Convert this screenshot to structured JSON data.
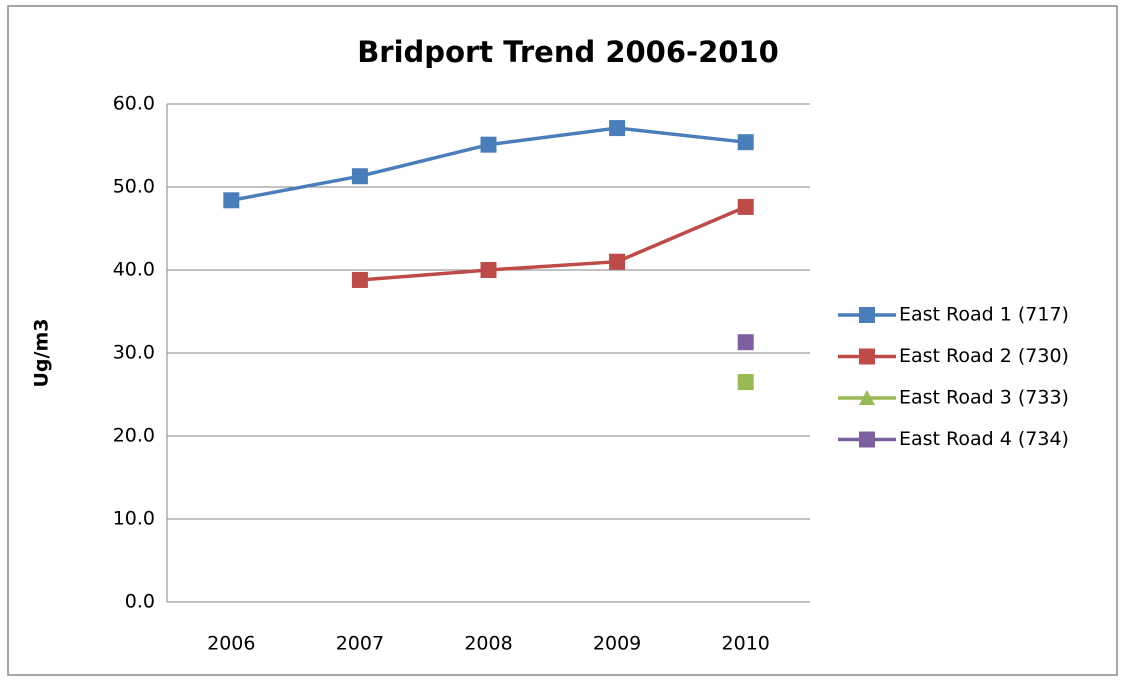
{
  "chart_data": {
    "type": "line",
    "title": "Bridport Trend 2006-2010",
    "y_label": "Ug/m3",
    "categories": [
      "2006",
      "2007",
      "2008",
      "2009",
      "2010"
    ],
    "series": [
      {
        "name": "East Road 1 (717)",
        "color": "#4a7ebb",
        "marker": "square",
        "values": [
          48.4,
          51.3,
          55.1,
          57.1,
          55.4
        ]
      },
      {
        "name": "East Road 2 (730)",
        "color": "#be4b48",
        "marker": "square",
        "values": [
          null,
          38.8,
          40.0,
          41.0,
          47.6
        ]
      },
      {
        "name": "East Road 3 (733)",
        "color": "#98b954",
        "marker": "triangle",
        "values": [
          null,
          null,
          null,
          null,
          26.5
        ]
      },
      {
        "name": "East Road 4 (734)",
        "color": "#7d60a0",
        "marker": "square",
        "values": [
          null,
          null,
          null,
          null,
          31.3
        ]
      }
    ],
    "ylim": [
      0,
      60
    ],
    "yticks": [
      {
        "value": 0,
        "label": "0.0"
      },
      {
        "value": 10,
        "label": "10.0"
      },
      {
        "value": 20,
        "label": "20.0"
      },
      {
        "value": 30,
        "label": "30.0"
      },
      {
        "value": 40,
        "label": "40.0"
      },
      {
        "value": 50,
        "label": "50.0"
      },
      {
        "value": 60,
        "label": "60.0"
      }
    ],
    "grid": true,
    "legend": "right"
  }
}
